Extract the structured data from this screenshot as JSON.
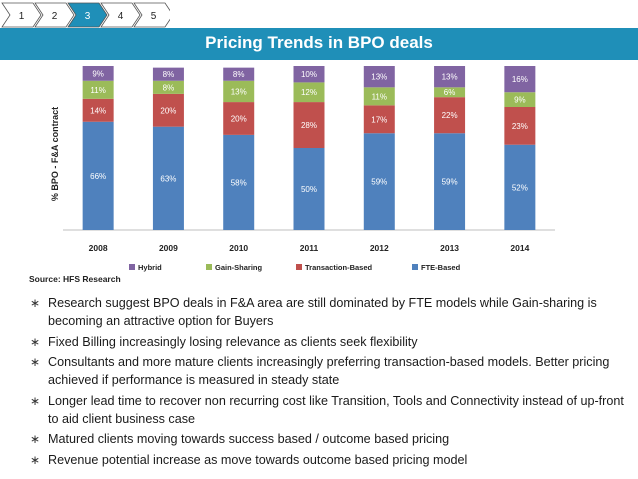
{
  "steps": [
    {
      "label": "1",
      "active": false
    },
    {
      "label": "2",
      "active": false
    },
    {
      "label": "3",
      "active": true
    },
    {
      "label": "4",
      "active": false
    },
    {
      "label": "5",
      "active": false
    }
  ],
  "colors": {
    "title_band": "#1f8fb8",
    "fte": "#4f81bd",
    "transaction": "#c0504d",
    "gain": "#9bbb59",
    "hybrid": "#8064a2",
    "step_active": "#1f8fb8",
    "step_inactive": "#ffffff"
  },
  "chart_data": {
    "type": "bar",
    "stacked": true,
    "title": "Pricing Trends in BPO deals",
    "xlabel": "",
    "ylabel": "% BPO - F&A contract",
    "ylim": [
      0,
      100
    ],
    "grid": false,
    "legend_position": "bottom",
    "categories": [
      "2008",
      "2009",
      "2010",
      "2011",
      "2012",
      "2013",
      "2014"
    ],
    "series": [
      {
        "name": "FTE-Based",
        "color": "#4f81bd",
        "values": [
          66,
          63,
          58,
          50,
          59,
          59,
          52
        ]
      },
      {
        "name": "Transaction-Based",
        "color": "#c0504d",
        "values": [
          14,
          20,
          20,
          28,
          17,
          22,
          23
        ]
      },
      {
        "name": "Gain-Sharing",
        "color": "#9bbb59",
        "values": [
          11,
          8,
          13,
          12,
          11,
          6,
          9
        ]
      },
      {
        "name": "Hybrid",
        "color": "#8064a2",
        "values": [
          9,
          8,
          8,
          10,
          13,
          13,
          16
        ]
      }
    ],
    "legend_order": [
      "Hybrid",
      "Gain-Sharing",
      "Transaction-Based",
      "FTE-Based"
    ],
    "source": "Source: HFS Research"
  },
  "bullets": [
    "Research suggest BPO deals in F&A area are still dominated by FTE models while Gain-sharing is becoming an attractive option for Buyers",
    "Fixed Billing increasingly losing relevance as clients seek flexibility",
    "Consultants and more mature clients increasingly preferring transaction-based models. Better pricing achieved if performance is measured in steady state",
    "Longer lead time to recover non recurring cost like Transition, Tools and Connectivity instead of up-front to aid client business case",
    "Matured clients moving towards success based / outcome based pricing",
    "Revenue potential increase as move towards outcome based pricing model"
  ],
  "bullet_icon": "star-bullet-icon"
}
